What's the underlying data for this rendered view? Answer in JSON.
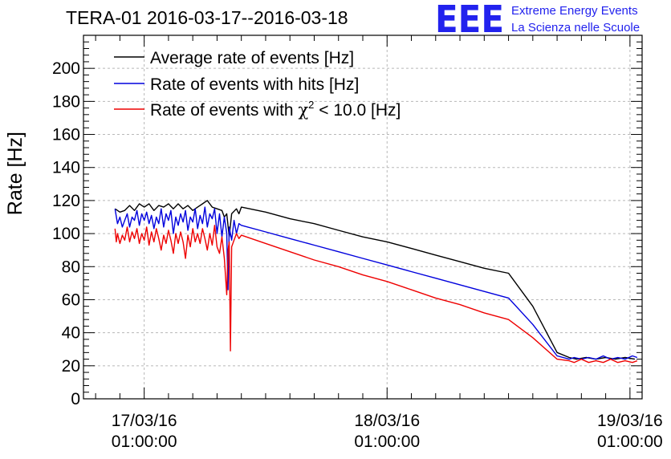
{
  "chart_data": {
    "type": "line",
    "title": "TERA-01 2016-03-17--2016-03-18",
    "xlabel": "",
    "ylabel": "Rate [Hz]",
    "ylim": [
      0,
      220
    ],
    "yticks": [
      0,
      20,
      40,
      60,
      80,
      100,
      120,
      140,
      160,
      180,
      200
    ],
    "xlim": [
      -0.25,
      2.05
    ],
    "x_unit": "days since 17/03/16 01:00:00",
    "xticks": [
      {
        "x": 0,
        "date": "17/03/16",
        "time": "01:00:00"
      },
      {
        "x": 1,
        "date": "18/03/16",
        "time": "01:00:00"
      },
      {
        "x": 2,
        "date": "19/03/16",
        "time": "01:00:00"
      }
    ],
    "grid": true,
    "legend_position": "top-left",
    "series": [
      {
        "name": "Average rate of events [Hz]",
        "color": "#000000",
        "points": [
          [
            -0.12,
            115
          ],
          [
            -0.1,
            113
          ],
          [
            -0.08,
            114
          ],
          [
            -0.06,
            117
          ],
          [
            -0.04,
            114
          ],
          [
            -0.02,
            118
          ],
          [
            0.0,
            116
          ],
          [
            0.02,
            118
          ],
          [
            0.04,
            114
          ],
          [
            0.06,
            117
          ],
          [
            0.08,
            116
          ],
          [
            0.1,
            118
          ],
          [
            0.12,
            115
          ],
          [
            0.14,
            118
          ],
          [
            0.16,
            115
          ],
          [
            0.18,
            117
          ],
          [
            0.2,
            114
          ],
          [
            0.22,
            116
          ],
          [
            0.24,
            118
          ],
          [
            0.26,
            120
          ],
          [
            0.28,
            116
          ],
          [
            0.3,
            115
          ],
          [
            0.32,
            114
          ],
          [
            0.33,
            110
          ],
          [
            0.34,
            112
          ],
          [
            0.35,
            98
          ],
          [
            0.36,
            112
          ],
          [
            0.38,
            115
          ],
          [
            0.39,
            112
          ],
          [
            0.4,
            116
          ],
          [
            0.5,
            113
          ],
          [
            0.6,
            109
          ],
          [
            0.7,
            106
          ],
          [
            0.8,
            102
          ],
          [
            0.9,
            98
          ],
          [
            1.0,
            95
          ],
          [
            1.1,
            91
          ],
          [
            1.2,
            87
          ],
          [
            1.3,
            83
          ],
          [
            1.4,
            79
          ],
          [
            1.5,
            76
          ],
          [
            1.6,
            56
          ],
          [
            1.7,
            28
          ],
          [
            1.75,
            25
          ],
          [
            1.78,
            24
          ],
          [
            1.82,
            25
          ],
          [
            1.86,
            24
          ],
          [
            1.9,
            25
          ],
          [
            1.94,
            24
          ],
          [
            1.98,
            25
          ],
          [
            2.02,
            24
          ]
        ]
      },
      {
        "name": "Rate of events with hits [Hz]",
        "color": "#0000dd",
        "points": [
          [
            -0.12,
            115
          ],
          [
            -0.11,
            106
          ],
          [
            -0.1,
            110
          ],
          [
            -0.09,
            104
          ],
          [
            -0.08,
            108
          ],
          [
            -0.07,
            112
          ],
          [
            -0.06,
            104
          ],
          [
            -0.05,
            110
          ],
          [
            -0.04,
            108
          ],
          [
            -0.03,
            114
          ],
          [
            -0.02,
            105
          ],
          [
            -0.01,
            112
          ],
          [
            0.0,
            108
          ],
          [
            0.01,
            113
          ],
          [
            0.02,
            106
          ],
          [
            0.03,
            111
          ],
          [
            0.04,
            103
          ],
          [
            0.05,
            110
          ],
          [
            0.06,
            106
          ],
          [
            0.07,
            115
          ],
          [
            0.08,
            104
          ],
          [
            0.09,
            112
          ],
          [
            0.1,
            108
          ],
          [
            0.11,
            114
          ],
          [
            0.12,
            100
          ],
          [
            0.13,
            110
          ],
          [
            0.14,
            105
          ],
          [
            0.15,
            112
          ],
          [
            0.16,
            107
          ],
          [
            0.17,
            114
          ],
          [
            0.18,
            102
          ],
          [
            0.19,
            110
          ],
          [
            0.2,
            107
          ],
          [
            0.21,
            115
          ],
          [
            0.22,
            103
          ],
          [
            0.23,
            111
          ],
          [
            0.24,
            106
          ],
          [
            0.25,
            116
          ],
          [
            0.26,
            104
          ],
          [
            0.27,
            112
          ],
          [
            0.28,
            109
          ],
          [
            0.29,
            115
          ],
          [
            0.3,
            100
          ],
          [
            0.31,
            112
          ],
          [
            0.32,
            98
          ],
          [
            0.33,
            110
          ],
          [
            0.34,
            100
          ],
          [
            0.345,
            66
          ],
          [
            0.35,
            104
          ],
          [
            0.36,
            96
          ],
          [
            0.37,
            108
          ],
          [
            0.38,
            100
          ],
          [
            0.39,
            106
          ],
          [
            0.4,
            105
          ],
          [
            0.5,
            101
          ],
          [
            0.6,
            97
          ],
          [
            0.7,
            93
          ],
          [
            0.8,
            89
          ],
          [
            0.9,
            85
          ],
          [
            1.0,
            81
          ],
          [
            1.1,
            77
          ],
          [
            1.2,
            73
          ],
          [
            1.3,
            69
          ],
          [
            1.4,
            65
          ],
          [
            1.5,
            61
          ],
          [
            1.6,
            45
          ],
          [
            1.7,
            26
          ],
          [
            1.75,
            24
          ],
          [
            1.77,
            25
          ],
          [
            1.8,
            24
          ],
          [
            1.83,
            25
          ],
          [
            1.86,
            24
          ],
          [
            1.89,
            26
          ],
          [
            1.92,
            24
          ],
          [
            1.95,
            25
          ],
          [
            1.98,
            24
          ],
          [
            2.01,
            26
          ],
          [
            2.03,
            25
          ]
        ]
      },
      {
        "name": "Rate of events with χ² < 10.0 [Hz]",
        "color": "#ee0000",
        "points": [
          [
            -0.12,
            103
          ],
          [
            -0.115,
            95
          ],
          [
            -0.11,
            100
          ],
          [
            -0.1,
            94
          ],
          [
            -0.09,
            99
          ],
          [
            -0.08,
            96
          ],
          [
            -0.07,
            104
          ],
          [
            -0.06,
            95
          ],
          [
            -0.05,
            101
          ],
          [
            -0.04,
            97
          ],
          [
            -0.03,
            103
          ],
          [
            -0.02,
            94
          ],
          [
            -0.01,
            100
          ],
          [
            0.0,
            96
          ],
          [
            0.01,
            104
          ],
          [
            0.02,
            93
          ],
          [
            0.03,
            101
          ],
          [
            0.04,
            95
          ],
          [
            0.05,
            103
          ],
          [
            0.06,
            97
          ],
          [
            0.07,
            90
          ],
          [
            0.08,
            99
          ],
          [
            0.09,
            94
          ],
          [
            0.1,
            102
          ],
          [
            0.11,
            96
          ],
          [
            0.12,
            88
          ],
          [
            0.13,
            100
          ],
          [
            0.14,
            94
          ],
          [
            0.15,
            101
          ],
          [
            0.16,
            95
          ],
          [
            0.17,
            85
          ],
          [
            0.18,
            99
          ],
          [
            0.19,
            92
          ],
          [
            0.2,
            103
          ],
          [
            0.21,
            95
          ],
          [
            0.22,
            100
          ],
          [
            0.23,
            94
          ],
          [
            0.24,
            103
          ],
          [
            0.25,
            97
          ],
          [
            0.26,
            90
          ],
          [
            0.27,
            100
          ],
          [
            0.28,
            93
          ],
          [
            0.29,
            105
          ],
          [
            0.3,
            92
          ],
          [
            0.31,
            88
          ],
          [
            0.32,
            98
          ],
          [
            0.33,
            85
          ],
          [
            0.34,
            63
          ],
          [
            0.345,
            90
          ],
          [
            0.35,
            95
          ],
          [
            0.355,
            29
          ],
          [
            0.36,
            92
          ],
          [
            0.37,
            96
          ],
          [
            0.38,
            100
          ],
          [
            0.39,
            97
          ],
          [
            0.4,
            99
          ],
          [
            0.5,
            94
          ],
          [
            0.6,
            89
          ],
          [
            0.7,
            84
          ],
          [
            0.8,
            80
          ],
          [
            0.9,
            75
          ],
          [
            1.0,
            71
          ],
          [
            1.1,
            66
          ],
          [
            1.2,
            61
          ],
          [
            1.3,
            57
          ],
          [
            1.4,
            52
          ],
          [
            1.5,
            48
          ],
          [
            1.6,
            37
          ],
          [
            1.7,
            24
          ],
          [
            1.75,
            23
          ],
          [
            1.77,
            22
          ],
          [
            1.8,
            24
          ],
          [
            1.83,
            22
          ],
          [
            1.86,
            23
          ],
          [
            1.89,
            22
          ],
          [
            1.92,
            24
          ],
          [
            1.95,
            22
          ],
          [
            1.98,
            23
          ],
          [
            2.01,
            22
          ],
          [
            2.03,
            23
          ]
        ]
      }
    ]
  },
  "legend": {
    "entries": [
      {
        "text": "Average rate of events [Hz]",
        "color": "#000000"
      },
      {
        "text": "Rate of events with hits [Hz]",
        "color": "#0000dd"
      },
      {
        "pre": "Rate of events with ",
        "chi": "χ",
        "sup": "2",
        "post": " < 10.0 [Hz]",
        "color": "#ee0000"
      }
    ]
  },
  "logo": {
    "mark": "EEE",
    "line1": "Extreme Energy Events",
    "line2": "La Scienza nelle Scuole",
    "color": "#2222ee"
  }
}
